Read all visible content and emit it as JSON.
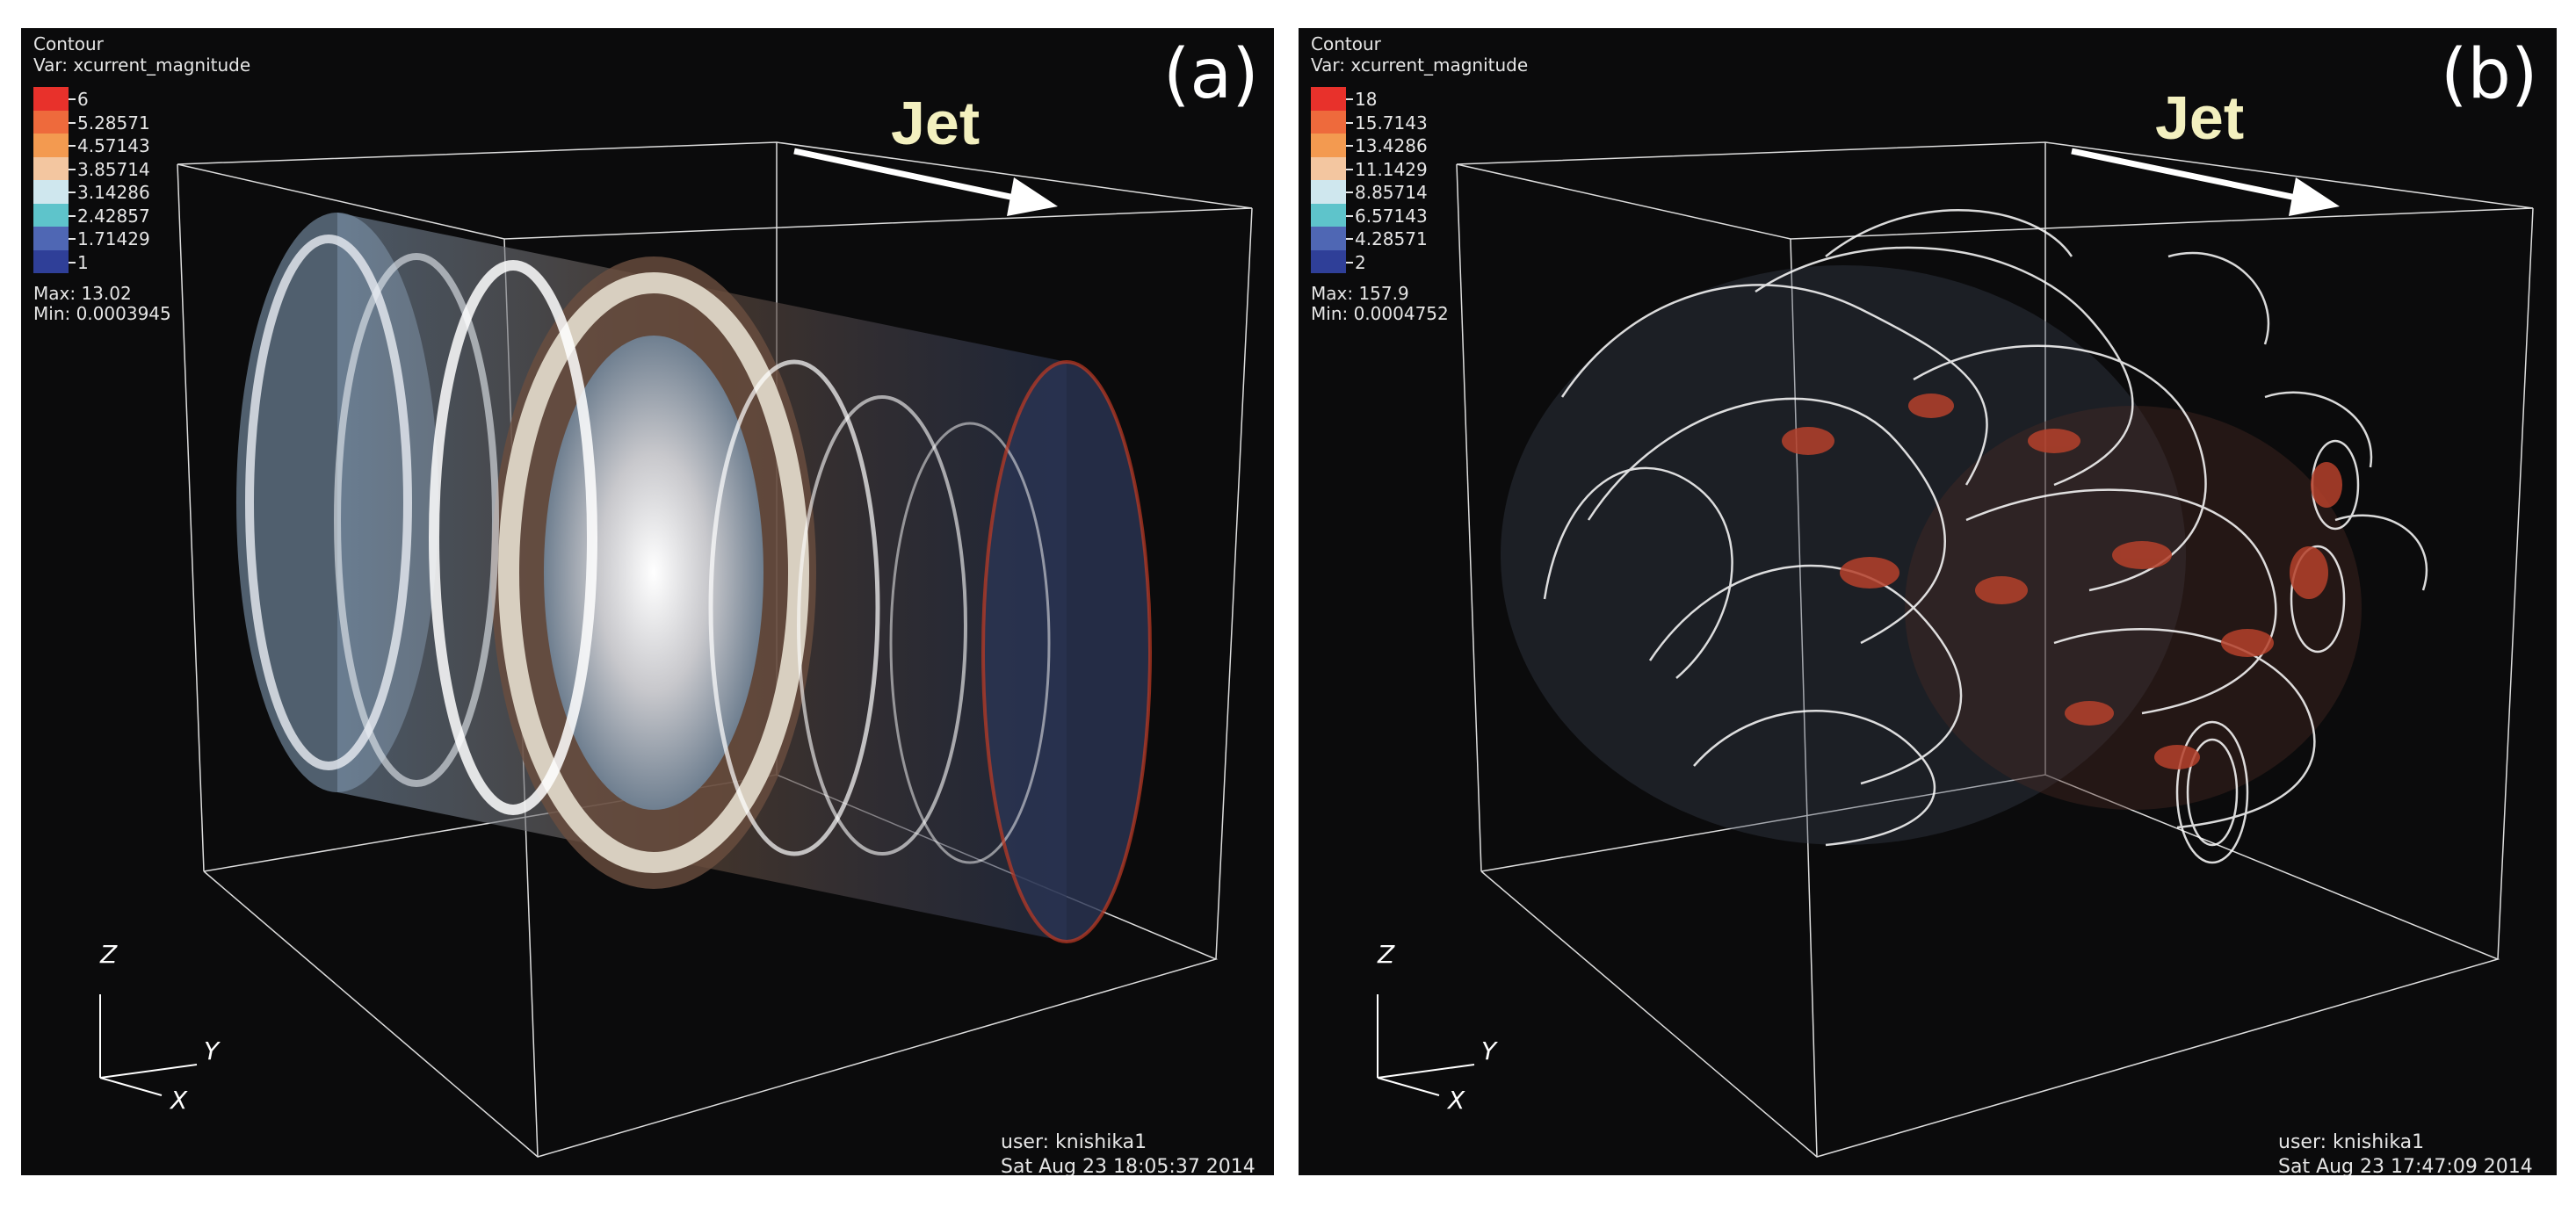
{
  "panels": [
    {
      "id": "a",
      "label": "(a)",
      "title": "Contour",
      "var": "Var: xcurrent_magnitude",
      "legend_values": [
        "6",
        "5.28571",
        "4.57143",
        "3.85714",
        "3.14286",
        "2.42857",
        "1.71429",
        "1"
      ],
      "max": "Max: 13.02",
      "min": "Min: 0.0003945",
      "jet_label": "Jet",
      "user": "user: knishika1",
      "date": "Sat Aug 23 18:05:37 2014",
      "axes": {
        "z": "Z",
        "y": "Y",
        "x": "X"
      }
    },
    {
      "id": "b",
      "label": "(b)",
      "title": "Contour",
      "var": "Var: xcurrent_magnitude",
      "legend_values": [
        "18",
        "15.7143",
        "13.4286",
        "11.1429",
        "8.85714",
        "6.57143",
        "4.28571",
        "2"
      ],
      "max": "Max: 157.9",
      "min": "Min: 0.0004752",
      "jet_label": "Jet",
      "user": "user: knishika1",
      "date": "Sat Aug 23 17:47:09 2014",
      "axes": {
        "z": "Z",
        "y": "Y",
        "x": "X"
      }
    }
  ],
  "legend_colors": [
    "#e8312b",
    "#ee6a3c",
    "#f39a50",
    "#f3c6a0",
    "#cfe7ee",
    "#5ec4cb",
    "#4f67b4",
    "#2f3f98"
  ]
}
